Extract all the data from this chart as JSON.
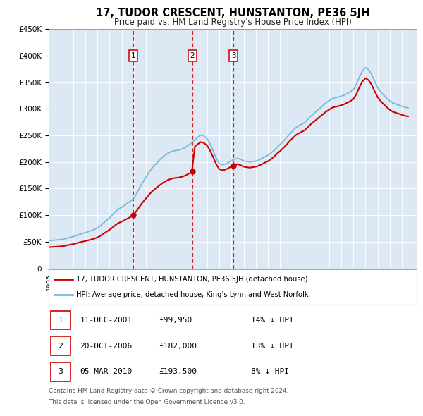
{
  "title": "17, TUDOR CRESCENT, HUNSTANTON, PE36 5JH",
  "subtitle": "Price paid vs. HM Land Registry's House Price Index (HPI)",
  "plot_bg_color": "#dce9f5",
  "yticks": [
    0,
    50000,
    100000,
    150000,
    200000,
    250000,
    300000,
    350000,
    400000,
    450000
  ],
  "ytick_labels": [
    "0",
    "£50K",
    "£100K",
    "£150K",
    "£200K",
    "£250K",
    "£300K",
    "£350K",
    "£400K",
    "£450K"
  ],
  "sale_dates_num": [
    2001.94,
    2006.8,
    2010.17
  ],
  "sale_prices": [
    99950,
    182000,
    193500
  ],
  "sale_labels": [
    "1",
    "2",
    "3"
  ],
  "legend_red": "17, TUDOR CRESCENT, HUNSTANTON, PE36 5JH (detached house)",
  "legend_blue": "HPI: Average price, detached house, King's Lynn and West Norfolk",
  "table_rows": [
    [
      "1",
      "11-DEC-2001",
      "£99,950",
      "14% ↓ HPI"
    ],
    [
      "2",
      "20-OCT-2006",
      "£182,000",
      "13% ↓ HPI"
    ],
    [
      "3",
      "05-MAR-2010",
      "£193,500",
      "8% ↓ HPI"
    ]
  ],
  "footnote1": "Contains HM Land Registry data © Crown copyright and database right 2024.",
  "footnote2": "This data is licensed under the Open Government Licence v3.0.",
  "hpi_dates": [
    1995.0,
    1995.25,
    1995.5,
    1995.75,
    1996.0,
    1996.25,
    1996.5,
    1996.75,
    1997.0,
    1997.25,
    1997.5,
    1997.75,
    1998.0,
    1998.25,
    1998.5,
    1998.75,
    1999.0,
    1999.25,
    1999.5,
    1999.75,
    2000.0,
    2000.25,
    2000.5,
    2000.75,
    2001.0,
    2001.25,
    2001.5,
    2001.75,
    2002.0,
    2002.25,
    2002.5,
    2002.75,
    2003.0,
    2003.25,
    2003.5,
    2003.75,
    2004.0,
    2004.25,
    2004.5,
    2004.75,
    2005.0,
    2005.25,
    2005.5,
    2005.75,
    2006.0,
    2006.25,
    2006.5,
    2006.75,
    2007.0,
    2007.25,
    2007.5,
    2007.75,
    2008.0,
    2008.25,
    2008.5,
    2008.75,
    2009.0,
    2009.25,
    2009.5,
    2009.75,
    2010.0,
    2010.25,
    2010.5,
    2010.75,
    2011.0,
    2011.25,
    2011.5,
    2011.75,
    2012.0,
    2012.25,
    2012.5,
    2012.75,
    2013.0,
    2013.25,
    2013.5,
    2013.75,
    2014.0,
    2014.25,
    2014.5,
    2014.75,
    2015.0,
    2015.25,
    2015.5,
    2015.75,
    2016.0,
    2016.25,
    2016.5,
    2016.75,
    2017.0,
    2017.25,
    2017.5,
    2017.75,
    2018.0,
    2018.25,
    2018.5,
    2018.75,
    2019.0,
    2019.25,
    2019.5,
    2019.75,
    2020.0,
    2020.25,
    2020.5,
    2020.75,
    2021.0,
    2021.25,
    2021.5,
    2021.75,
    2022.0,
    2022.25,
    2022.5,
    2022.75,
    2023.0,
    2023.25,
    2023.5,
    2023.75,
    2024.0,
    2024.25,
    2024.5
  ],
  "hpi_values": [
    52000,
    52500,
    53000,
    53500,
    54000,
    55000,
    56500,
    58000,
    59500,
    61500,
    63500,
    65500,
    67000,
    69000,
    71000,
    73000,
    76000,
    80000,
    85000,
    90000,
    95000,
    101000,
    107000,
    112000,
    115000,
    119000,
    123000,
    127000,
    132000,
    142000,
    153000,
    163000,
    172000,
    181000,
    189000,
    195000,
    201000,
    207000,
    212000,
    216000,
    219000,
    221000,
    222000,
    223000,
    225000,
    228000,
    232000,
    236000,
    242000,
    247000,
    251000,
    249000,
    244000,
    234000,
    221000,
    207000,
    197000,
    195000,
    196000,
    199000,
    203000,
    205000,
    207000,
    205000,
    202000,
    201000,
    200000,
    201000,
    202000,
    204000,
    207000,
    210000,
    213000,
    217000,
    222000,
    228000,
    233000,
    239000,
    245000,
    252000,
    258000,
    264000,
    268000,
    271000,
    274000,
    280000,
    286000,
    291000,
    296000,
    301000,
    306000,
    311000,
    315000,
    319000,
    321000,
    322000,
    324000,
    326000,
    329000,
    332000,
    336000,
    346000,
    360000,
    371000,
    378000,
    374000,
    365000,
    352000,
    340000,
    332000,
    326000,
    320000,
    315000,
    311000,
    309000,
    307000,
    305000,
    303000,
    302000
  ]
}
